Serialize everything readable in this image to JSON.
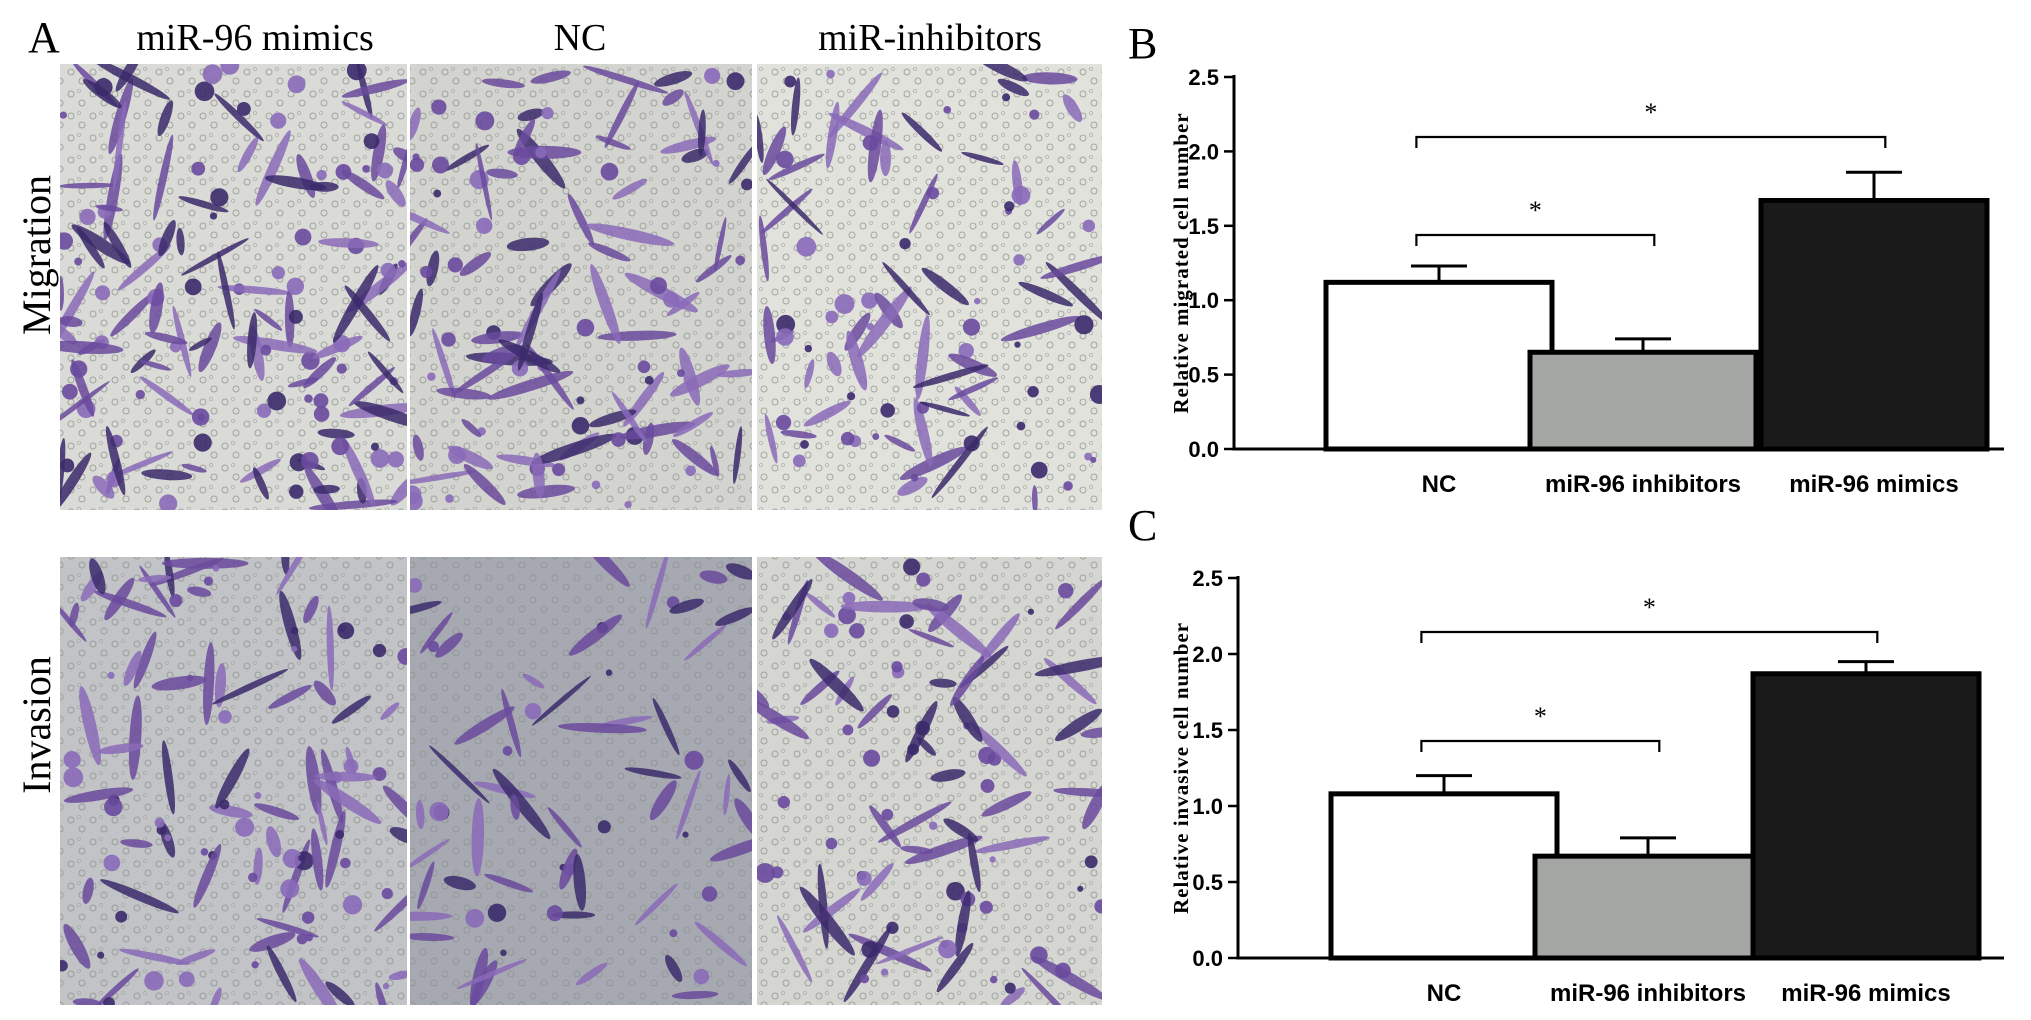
{
  "panel_a": {
    "letter": "A",
    "columns": [
      "miR-96 mimics",
      "NC",
      "miR-inhibitors"
    ],
    "rows": [
      "Migration",
      "Invasion"
    ]
  },
  "chart_data": [
    {
      "type": "bar",
      "panel": "B",
      "categories": [
        "NC",
        "miR-96 inhibitors",
        "miR-96 mimics"
      ],
      "values": [
        1.12,
        0.65,
        1.67
      ],
      "errors": [
        0.11,
        0.09,
        0.19
      ],
      "bar_colors": [
        "#ffffff",
        "#a4a6a3",
        "#1a1a1a"
      ],
      "title": "",
      "xlabel": "",
      "ylabel": "Relative migrated cell number",
      "ylim": [
        0,
        2.5
      ],
      "yticks": [
        "0.0",
        "0.5",
        "1.0",
        "1.5",
        "2.0",
        "2.5"
      ],
      "annotations": [
        {
          "from": "NC",
          "to": "miR-96 inhibitors",
          "label": "*"
        },
        {
          "from": "NC",
          "to": "miR-96 mimics",
          "label": "*"
        }
      ]
    },
    {
      "type": "bar",
      "panel": "C",
      "categories": [
        "NC",
        "miR-96 inhibitors",
        "miR-96 mimics"
      ],
      "values": [
        1.08,
        0.67,
        1.87
      ],
      "errors": [
        0.12,
        0.12,
        0.08
      ],
      "bar_colors": [
        "#ffffff",
        "#a4a6a3",
        "#1a1a1a"
      ],
      "title": "",
      "xlabel": "",
      "ylabel": "Relative invasive cell number",
      "ylim": [
        0,
        2.5
      ],
      "yticks": [
        "0.0",
        "0.5",
        "1.0",
        "1.5",
        "2.0",
        "2.5"
      ],
      "annotations": [
        {
          "from": "NC",
          "to": "miR-96 inhibitors",
          "label": "*"
        },
        {
          "from": "NC",
          "to": "miR-96 mimics",
          "label": "*"
        }
      ]
    }
  ]
}
